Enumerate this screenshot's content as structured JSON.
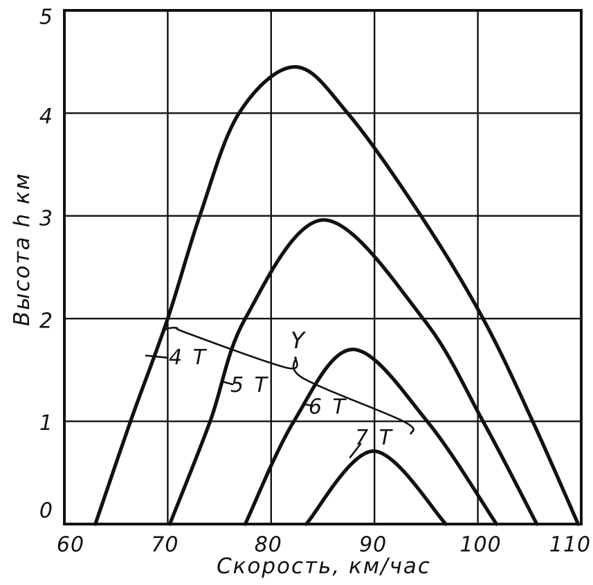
{
  "chart_data": {
    "type": "line",
    "title": "",
    "xlabel": "Скорость, км/час",
    "ylabel": "Высота h км",
    "xlim": [
      60,
      110
    ],
    "ylim": [
      0,
      5
    ],
    "x_ticks": [
      "60",
      "70",
      "80",
      "90",
      "100",
      "110"
    ],
    "y_ticks": [
      "0",
      "1",
      "2",
      "3",
      "4",
      "5"
    ],
    "grid": true,
    "legend_position": "none",
    "ink_color": "#111111",
    "background": "#ffffff",
    "series": [
      {
        "name": "4 T",
        "points": [
          [
            63.0,
            0
          ],
          [
            66.4,
            1.0
          ],
          [
            70.0,
            2.0
          ],
          [
            73.1,
            3.0
          ],
          [
            76.9,
            4.0
          ],
          [
            82.3,
            4.45
          ],
          [
            87.4,
            4.0
          ],
          [
            94.5,
            3.0
          ],
          [
            100.5,
            2.0
          ],
          [
            105.3,
            1.0
          ],
          [
            109.7,
            0
          ]
        ]
      },
      {
        "name": "5 T",
        "points": [
          [
            70.2,
            0
          ],
          [
            74.1,
            1.0
          ],
          [
            77.5,
            2.0
          ],
          [
            85.1,
            2.96
          ],
          [
            94.7,
            2.0
          ],
          [
            100.5,
            1.0
          ],
          [
            105.7,
            0
          ]
        ]
      },
      {
        "name": "6 T",
        "points": [
          [
            77.5,
            0
          ],
          [
            82.2,
            1.0
          ],
          [
            87.9,
            1.7
          ],
          [
            95.1,
            1.0
          ],
          [
            101.8,
            0
          ]
        ]
      },
      {
        "name": "7 T",
        "points": [
          [
            83.4,
            0
          ],
          [
            89.9,
            0.71
          ],
          [
            96.9,
            0
          ]
        ]
      }
    ],
    "annotations": {
      "group_label": {
        "text": "Y",
        "pos": [
          82.56,
          1.79
        ]
      },
      "leader_line": [
        [
          69.3,
          1.81
        ],
        [
          69.71,
          1.89
        ],
        [
          70.84,
          1.91
        ],
        [
          71.85,
          1.86
        ],
        [
          81.55,
          1.52
        ],
        [
          82.36,
          1.62
        ],
        [
          83.09,
          1.42
        ],
        [
          92.8,
          1.0
        ],
        [
          93.53,
          0.88
        ]
      ],
      "curve_labels": [
        {
          "text": "4 T",
          "pos": [
            71.98,
            1.62
          ],
          "tick": [
            [
              67.9,
              1.64
            ],
            [
              69.91,
              1.62
            ]
          ]
        },
        {
          "text": "5 T",
          "pos": [
            77.94,
            1.35
          ],
          "tick": [
            [
              75.19,
              1.39
            ],
            [
              76.26,
              1.36
            ]
          ]
        },
        {
          "text": "6 T",
          "pos": [
            85.5,
            1.14
          ],
          "tick": [
            [
              83.09,
              1.17
            ],
            [
              84.03,
              1.15
            ]
          ]
        },
        {
          "text": "7 T",
          "pos": [
            89.99,
            0.84
          ],
          "tick": [
            [
              88.65,
              0.78
            ],
            [
              87.65,
              0.65
            ]
          ]
        }
      ]
    }
  }
}
